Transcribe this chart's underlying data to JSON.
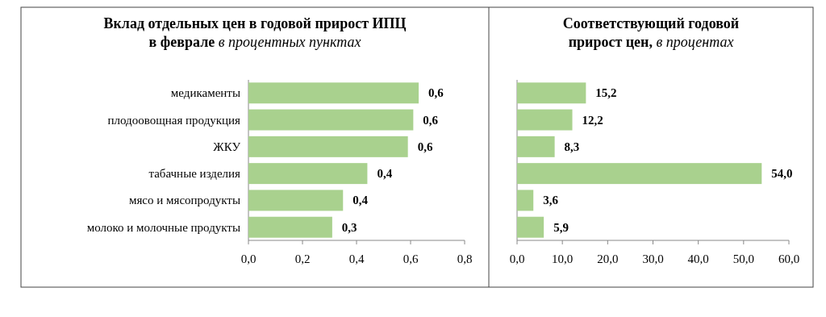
{
  "chart_data": [
    {
      "type": "bar",
      "orientation": "horizontal",
      "title": "Вклад отдельных цен в годовой прирост ИПЦ в феврале",
      "subtitle": "в процентных пунктах",
      "categories": [
        "медикаменты",
        "плодоовощная продукция",
        "ЖКУ",
        "табачные изделия",
        "мясо и мясопродукты",
        "молоко и молочные продукты"
      ],
      "values": [
        0.63,
        0.61,
        0.59,
        0.44,
        0.35,
        0.31
      ],
      "value_labels": [
        "0,6",
        "0,6",
        "0,6",
        "0,4",
        "0,4",
        "0,3"
      ],
      "color": "#a9d18e",
      "xlim": [
        0,
        0.8
      ],
      "xticks": [
        {
          "value": 0,
          "label": "0,0"
        },
        {
          "value": 0.2,
          "label": "0,2"
        },
        {
          "value": 0.4,
          "label": "0,4"
        },
        {
          "value": 0.6,
          "label": "0,6"
        },
        {
          "value": 0.8,
          "label": "0,8"
        }
      ]
    },
    {
      "type": "bar",
      "orientation": "horizontal",
      "title": "Соответствующий годовой прирост цен,",
      "subtitle": "в процентах",
      "categories": [
        null,
        null,
        null,
        null,
        null,
        null
      ],
      "values": [
        15.2,
        12.2,
        8.3,
        54.0,
        3.6,
        5.9
      ],
      "value_labels": [
        "15,2",
        "12,2",
        "8,3",
        "54,0",
        "3,6",
        "5,9"
      ],
      "color": "#a9d18e",
      "xlim": [
        0,
        60
      ],
      "tick_labels": "x",
      "xticks": [
        {
          "value": 0,
          "label": "0,0"
        },
        {
          "value": 10,
          "label": "10,0"
        },
        {
          "value": 20,
          "label": "20,0"
        },
        {
          "value": 30,
          "label": "30,0"
        },
        {
          "value": 40,
          "label": "40,0"
        },
        {
          "value": 50,
          "label": "50,0"
        },
        {
          "value": 60,
          "label": "60,0"
        }
      ]
    }
  ]
}
